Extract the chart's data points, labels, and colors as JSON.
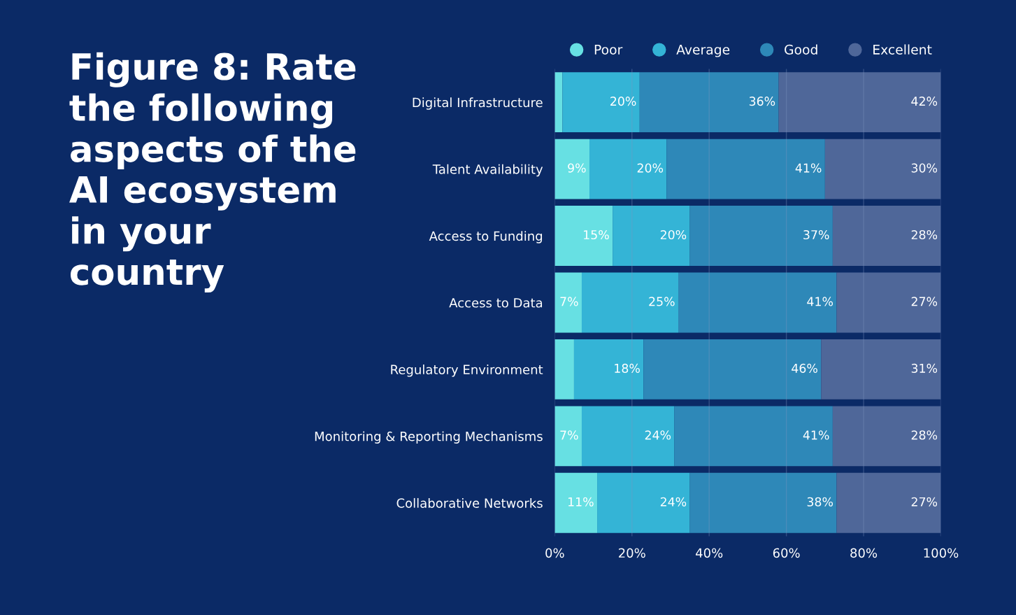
{
  "chart_data": {
    "type": "bar",
    "orientation": "horizontal",
    "stacked": true,
    "title": "Figure 8: Rate the following aspects of the AI ecosystem in your country",
    "categories": [
      "Digital Infrastructure",
      "Talent Availability",
      "Access to Funding",
      "Access to Data",
      "Regulatory Environment",
      "Monitoring & Reporting Mechanisms",
      "Collaborative Networks"
    ],
    "series": [
      {
        "name": "Poor",
        "color": "#67e0e3",
        "values": [
          2,
          9,
          15,
          7,
          5,
          7,
          11
        ],
        "value_labels": [
          null,
          "9%",
          "15%",
          "7%",
          null,
          "7%",
          "11%"
        ]
      },
      {
        "name": "Average",
        "color": "#34b4d6",
        "values": [
          20,
          20,
          20,
          25,
          18,
          24,
          24
        ],
        "value_labels": [
          "20%",
          "20%",
          "20%",
          "25%",
          "18%",
          "24%",
          "24%"
        ]
      },
      {
        "name": "Good",
        "color": "#2e88b8",
        "values": [
          36,
          41,
          37,
          41,
          46,
          41,
          38
        ],
        "value_labels": [
          "36%",
          "41%",
          "37%",
          "41%",
          "46%",
          "41%",
          "38%"
        ]
      },
      {
        "name": "Excellent",
        "color": "#4f6799",
        "values": [
          42,
          30,
          28,
          27,
          31,
          28,
          27
        ],
        "value_labels": [
          "42%",
          "30%",
          "28%",
          "27%",
          "31%",
          "28%",
          "27%"
        ]
      }
    ],
    "xlim": [
      0,
      100
    ],
    "xticks": [
      {
        "value": 0,
        "label": "0%"
      },
      {
        "value": 20,
        "label": "20%"
      },
      {
        "value": 40,
        "label": "40%"
      },
      {
        "value": 60,
        "label": "60%"
      },
      {
        "value": 80,
        "label": "80%"
      },
      {
        "value": 100,
        "label": "100%"
      }
    ],
    "grid": "x",
    "legend": "top"
  }
}
